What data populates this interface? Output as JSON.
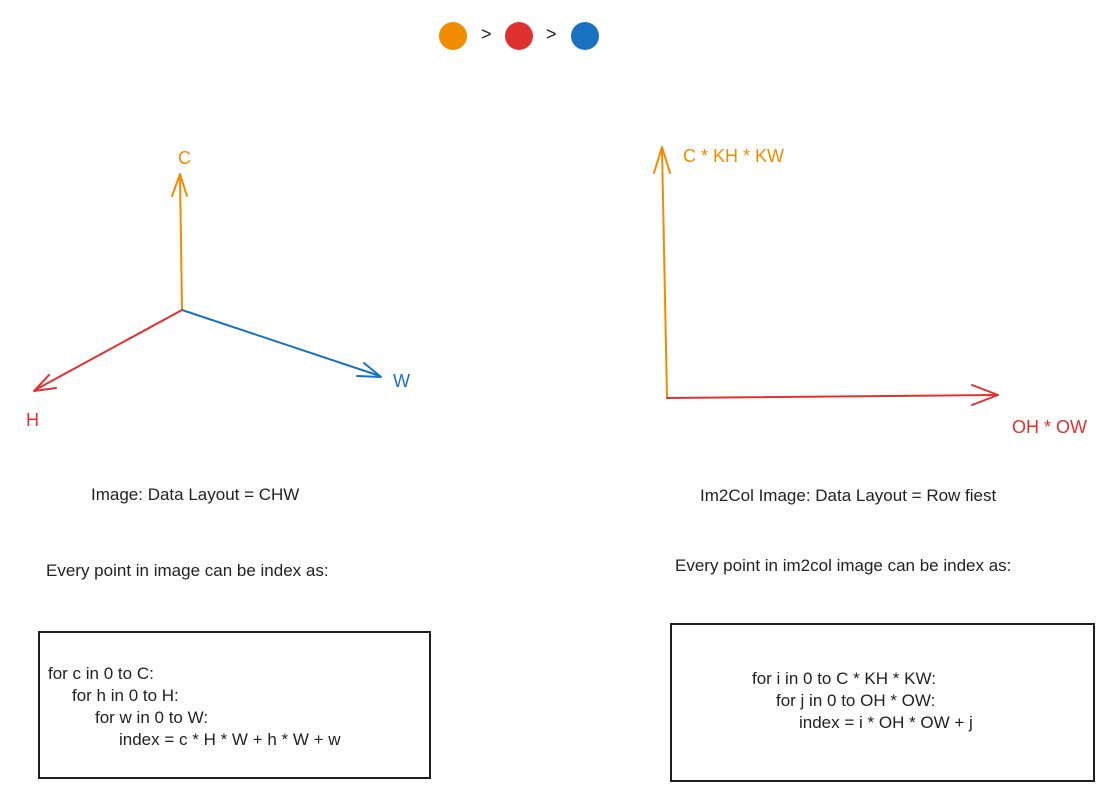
{
  "legend": {
    "separators": [
      ">",
      ">"
    ],
    "dot_colors": [
      "#f08c00",
      "#e03131",
      "#1971c2"
    ]
  },
  "colors": {
    "channel": "#f08c00",
    "height": "#e03131",
    "width": "#1971c2"
  },
  "left_axes": {
    "c_label": "C",
    "w_label": "W",
    "h_label": "H"
  },
  "right_axes": {
    "y_label": "C * KH * KW",
    "x_label": "OH * OW"
  },
  "left_panel": {
    "title": "Image: Data Layout = CHW",
    "subtitle": "Every point in image can be index as:",
    "code_lines": [
      "for c in 0 to C:",
      "for h in 0 to H:",
      "for w in 0 to W:",
      "index = c * H * W + h * W + w"
    ]
  },
  "right_panel": {
    "title": "Im2Col Image: Data Layout = Row fiest",
    "subtitle": "Every point in im2col image can be index as:",
    "code_lines": [
      "for i in 0 to C * KH * KW:",
      "for j in 0 to OH * OW:",
      "index = i * OH * OW + j"
    ]
  }
}
